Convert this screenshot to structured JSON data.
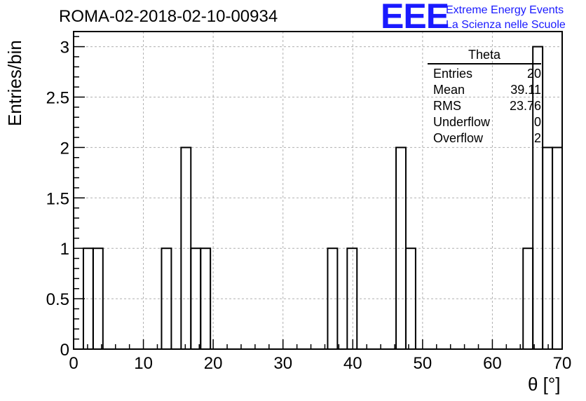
{
  "header": {
    "title": "ROMA-02-2018-02-10-00934"
  },
  "logo": {
    "mark": "EEE",
    "line1": "Extreme Energy Events",
    "line2": "La Scienza nelle Scuole",
    "color": "#1a1aff"
  },
  "stats_box": {
    "title": "Theta",
    "rows": [
      {
        "label": "Entries",
        "value": "20"
      },
      {
        "label": "Mean",
        "value": "39.11"
      },
      {
        "label": "RMS",
        "value": "23.76"
      },
      {
        "label": "Underflow",
        "value": "0"
      },
      {
        "label": "Overflow",
        "value": "2"
      }
    ]
  },
  "chart_data": {
    "type": "bar",
    "title": "ROMA-02-2018-02-10-00934",
    "xlabel": "θ [°]",
    "ylabel": "Entries/bin",
    "xlim": [
      0,
      70
    ],
    "ylim": [
      0,
      3.15
    ],
    "bin_width": 1.4,
    "xticks": [
      0,
      10,
      20,
      30,
      40,
      50,
      60,
      70
    ],
    "yticks": [
      0,
      0.5,
      1,
      1.5,
      2,
      2.5,
      3
    ],
    "ytick_labels": [
      "0",
      "0.5",
      "1",
      "1.5",
      "2",
      "2.5",
      "3"
    ],
    "grid": true,
    "bins": [
      {
        "x": 1.4,
        "count": 1
      },
      {
        "x": 2.8,
        "count": 1
      },
      {
        "x": 12.6,
        "count": 1
      },
      {
        "x": 15.4,
        "count": 2
      },
      {
        "x": 16.8,
        "count": 1
      },
      {
        "x": 18.2,
        "count": 1
      },
      {
        "x": 36.4,
        "count": 1
      },
      {
        "x": 39.2,
        "count": 1
      },
      {
        "x": 46.2,
        "count": 2
      },
      {
        "x": 47.6,
        "count": 1
      },
      {
        "x": 64.4,
        "count": 1
      },
      {
        "x": 65.8,
        "count": 3
      },
      {
        "x": 67.2,
        "count": 2
      },
      {
        "x": 68.6,
        "count": 2
      }
    ]
  }
}
